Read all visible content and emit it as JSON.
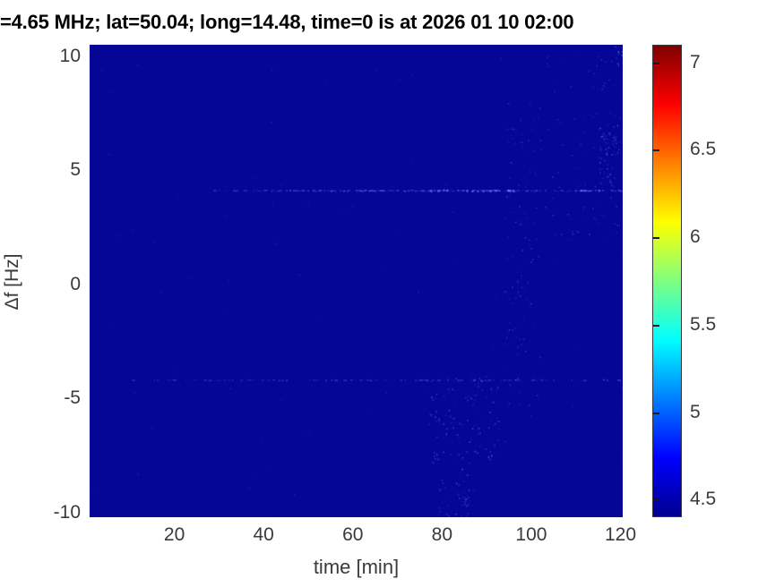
{
  "chart_data": {
    "type": "heatmap",
    "title": "=4.65 MHz;  lat=50.04; long=14.48, time=0 is at 2026 01 10 02:00",
    "xlabel": "time [min]",
    "ylabel": "Δf [Hz]",
    "xlim": [
      1,
      120.5
    ],
    "ylim": [
      -10.2,
      10.5
    ],
    "xticks": [
      20,
      40,
      60,
      80,
      100,
      120
    ],
    "yticks": [
      10,
      5,
      0,
      -5,
      -10
    ],
    "grid": false,
    "legend": false,
    "colormap": "jet",
    "background_value_color": "#050596",
    "colorbar": {
      "range": [
        4.4,
        7.1
      ],
      "ticks": [
        4.5,
        5,
        5.5,
        6,
        6.5,
        7
      ],
      "gradient_stops": [
        {
          "pos": 0.0,
          "color": "#000090"
        },
        {
          "pos": 0.125,
          "color": "#0000ff"
        },
        {
          "pos": 0.375,
          "color": "#00ffff"
        },
        {
          "pos": 0.625,
          "color": "#ffff00"
        },
        {
          "pos": 0.875,
          "color": "#ff0000"
        },
        {
          "pos": 1.0,
          "color": "#7f0000"
        }
      ]
    },
    "features": {
      "horizontal_lines": [
        {
          "df": 4.1,
          "segments": [
            {
              "t0": 28,
              "t1": 45,
              "density": 0.45,
              "intensity": 0.45
            },
            {
              "t0": 45,
              "t1": 77,
              "density": 0.85,
              "intensity": 0.7
            },
            {
              "t0": 77,
              "t1": 97,
              "density": 0.9,
              "intensity": 1.0
            },
            {
              "t0": 97,
              "t1": 109,
              "density": 0.5,
              "intensity": 0.5
            },
            {
              "t0": 109,
              "t1": 120.5,
              "density": 0.8,
              "intensity": 0.8
            }
          ]
        },
        {
          "df": -4.2,
          "segments": [
            {
              "t0": 4,
              "t1": 18,
              "density": 0.15,
              "intensity": 0.3
            },
            {
              "t0": 18,
              "t1": 45,
              "density": 0.35,
              "intensity": 0.4
            },
            {
              "t0": 45,
              "t1": 75,
              "density": 0.4,
              "intensity": 0.45
            },
            {
              "t0": 75,
              "t1": 100,
              "density": 0.55,
              "intensity": 0.6
            },
            {
              "t0": 100,
              "t1": 120.5,
              "density": 0.35,
              "intensity": 0.45
            }
          ]
        }
      ],
      "speckle_clusters": [
        {
          "name": "descending-blob",
          "t0": 77,
          "t1": 93,
          "df0": -7.8,
          "df1": -3.8,
          "count": 130,
          "intensity": 0.5
        },
        {
          "name": "bottom-trail",
          "t0": 83,
          "t1": 86,
          "df0": -10.2,
          "df1": -7.5,
          "count": 35,
          "intensity": 0.55
        },
        {
          "name": "bottom-trail-2",
          "t0": 79,
          "t1": 82,
          "df0": -10.2,
          "df1": -8.5,
          "count": 15,
          "intensity": 0.45
        },
        {
          "name": "vertical-wiggle",
          "t0": 94,
          "t1": 102,
          "df0": -6.0,
          "df1": 8.0,
          "count": 120,
          "intensity": 0.4
        },
        {
          "name": "top-right-scatter",
          "t0": 103,
          "t1": 120.5,
          "df0": 2.0,
          "df1": 10.5,
          "count": 100,
          "intensity": 0.4
        },
        {
          "name": "top-right-dense",
          "t0": 115,
          "t1": 120.5,
          "df0": 4.3,
          "df1": 7.0,
          "count": 55,
          "intensity": 0.55
        },
        {
          "name": "corner-speckle",
          "t0": 118.5,
          "t1": 120.5,
          "df0": 9.6,
          "df1": 10.5,
          "count": 12,
          "intensity": 0.7
        },
        {
          "name": "ambient-noise",
          "t0": 1,
          "t1": 120.5,
          "df0": -10.2,
          "df1": 10.5,
          "count": 80,
          "intensity": 0.22
        }
      ]
    }
  },
  "colors": {
    "figure_background": "#ffffff",
    "axis_text": "#3a3a3a",
    "title_text": "#000000",
    "speckle_blue_bright": "#6e82ff"
  }
}
